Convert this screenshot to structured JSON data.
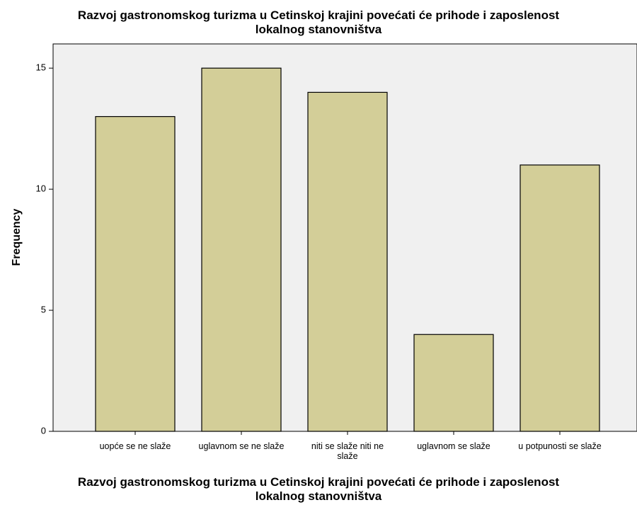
{
  "chart_data": {
    "type": "bar",
    "title": "Razvoj gastronomskog turizma u Cetinskoj krajini povećati će prihode i zaposlenost lokalnog stanovništva",
    "x_label": "Razvoj gastronomskog turizma u Cetinskoj krajini povećati će prihode i zaposlenost lokalnog stanovništva",
    "y_label": "Frequency",
    "categories": [
      "uopće se ne slaže",
      "uglavnom se ne slaže",
      "niti se slaže niti ne slaže",
      "uglavnom se slaže",
      "u potpunosti se slaže"
    ],
    "values": [
      13,
      15,
      14,
      4,
      11
    ],
    "color": "#d3ce98",
    "ylim": [
      0,
      16
    ],
    "yticks": [
      0,
      5,
      10,
      15
    ],
    "grid": false
  }
}
